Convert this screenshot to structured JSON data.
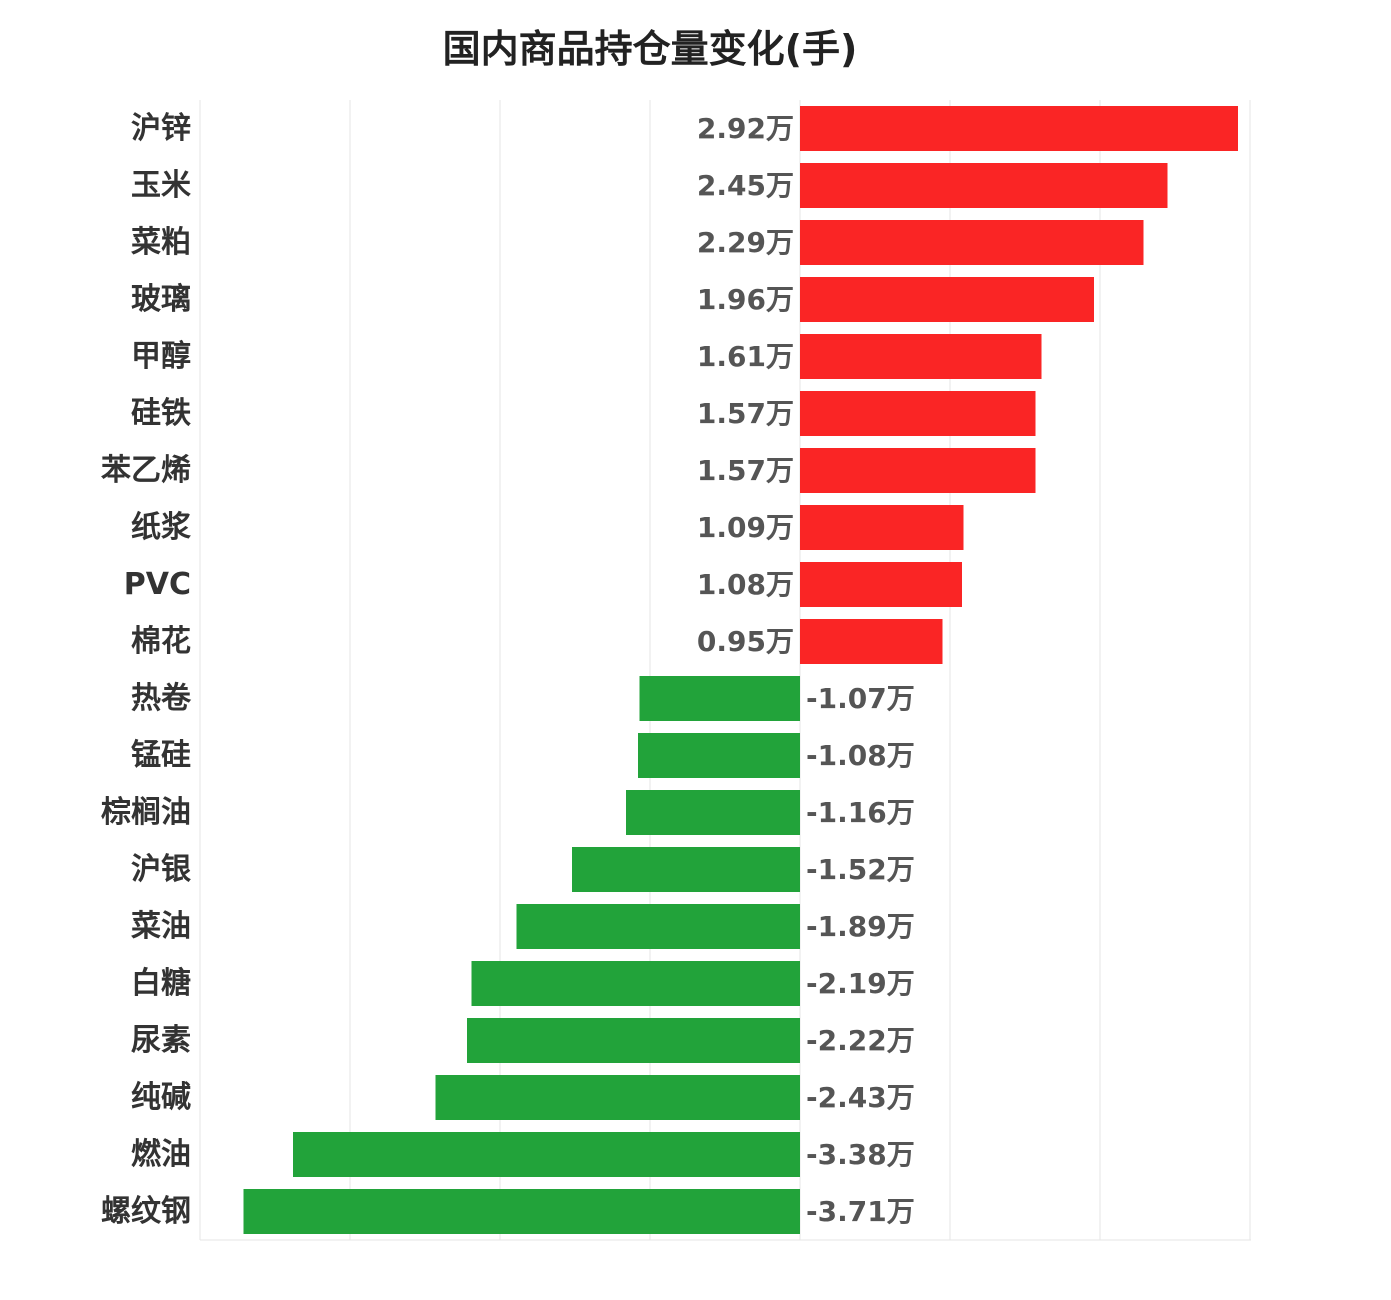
{
  "chart_data": {
    "type": "bar",
    "orientation": "horizontal",
    "title": "国内商品持仓量变化(手)",
    "unit": "万",
    "categories": [
      "沪锌",
      "玉米",
      "菜粕",
      "玻璃",
      "甲醇",
      "硅铁",
      "苯乙烯",
      "纸浆",
      "PVC",
      "棉花",
      "热卷",
      "锰硅",
      "棕榈油",
      "沪银",
      "菜油",
      "白糖",
      "尿素",
      "纯碱",
      "燃油",
      "螺纹钢"
    ],
    "values": [
      2.92,
      2.45,
      2.29,
      1.96,
      1.61,
      1.57,
      1.57,
      1.09,
      1.08,
      0.95,
      -1.07,
      -1.08,
      -1.16,
      -1.52,
      -1.89,
      -2.19,
      -2.22,
      -2.43,
      -3.38,
      -3.71
    ],
    "value_labels": [
      "2.92万",
      "2.45万",
      "2.29万",
      "1.96万",
      "1.61万",
      "1.57万",
      "1.57万",
      "1.09万",
      "1.08万",
      "0.95万",
      "-1.07万",
      "-1.08万",
      "-1.16万",
      "-1.52万",
      "-1.89万",
      "-2.19万",
      "-2.22万",
      "-2.43万",
      "-3.38万",
      "-3.71万"
    ],
    "xlim": [
      -4,
      3
    ],
    "grid": true,
    "colors": {
      "positive": "#fa2525",
      "negative": "#22a33a",
      "grid": "#e6e6e6"
    }
  }
}
